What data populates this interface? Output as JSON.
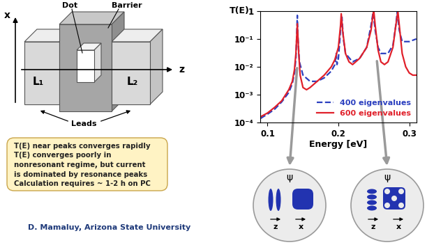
{
  "device": {
    "axis_x": "x",
    "axis_z": "z",
    "dot": "Dot",
    "barrier": "Barrier",
    "lead_left": "L₁",
    "lead_right": "L₂",
    "leads": "Leads"
  },
  "note": {
    "lines": [
      "T(E) near peaks converges rapidly",
      "T(E) converges poorly in",
      "nonresonant regime, but current",
      "is dominated by resonance peaks",
      "Calculation requires ~ 1-2 h on PC"
    ]
  },
  "author": "D. Mamaluy, Arizona State University",
  "wavefunctions": [
    {
      "symbol": "ψ",
      "axes": [
        "z",
        "x"
      ]
    },
    {
      "symbol": "ψ",
      "axes": [
        "z",
        "x"
      ]
    }
  ],
  "chart_data": {
    "type": "line",
    "x_label": "Energy [eV]",
    "y_label": "T(E)",
    "log": "y",
    "legend": "lower right",
    "xlim": [
      0.09,
      0.31
    ],
    "xticks": [
      0.1,
      0.2,
      0.3
    ],
    "ylim": [
      0.0001,
      1
    ],
    "yticks": [
      {
        "value": 0.0001,
        "label": "10⁻⁴"
      },
      {
        "value": 0.001,
        "label": "10⁻³"
      },
      {
        "value": 0.01,
        "label": "10⁻²"
      },
      {
        "value": 0.1,
        "label": "10⁻¹"
      },
      {
        "value": 1,
        "label": "1"
      }
    ],
    "series": [
      {
        "name": "400 eigenvalues",
        "color": "#2b3fbf",
        "line_style": "dashed",
        "x": [
          0.09,
          0.1,
          0.11,
          0.12,
          0.13,
          0.135,
          0.138,
          0.14,
          0.141,
          0.142,
          0.143,
          0.145,
          0.15,
          0.16,
          0.17,
          0.18,
          0.19,
          0.195,
          0.197,
          0.198,
          0.2,
          0.203,
          0.205,
          0.207,
          0.21,
          0.22,
          0.23,
          0.24,
          0.246,
          0.249,
          0.252,
          0.256,
          0.26,
          0.27,
          0.277,
          0.281,
          0.283,
          0.286,
          0.29,
          0.3,
          0.31
        ],
        "values": [
          0.00014,
          0.0002,
          0.0003,
          0.00055,
          0.0012,
          0.0025,
          0.006,
          0.02,
          0.1,
          0.7,
          0.1,
          0.015,
          0.005,
          0.003,
          0.003,
          0.004,
          0.007,
          0.012,
          0.03,
          0.012,
          0.02,
          0.2,
          0.6,
          0.1,
          0.03,
          0.015,
          0.02,
          0.05,
          0.3,
          0.9,
          0.2,
          0.05,
          0.03,
          0.03,
          0.06,
          0.3,
          0.9,
          0.2,
          0.08,
          0.08,
          0.1
        ]
      },
      {
        "name": "600 eigenvalues",
        "color": "#e0202a",
        "line_style": "solid",
        "x": [
          0.09,
          0.1,
          0.11,
          0.12,
          0.13,
          0.135,
          0.138,
          0.14,
          0.142,
          0.144,
          0.146,
          0.15,
          0.155,
          0.16,
          0.17,
          0.18,
          0.19,
          0.195,
          0.2,
          0.203,
          0.204,
          0.206,
          0.21,
          0.215,
          0.22,
          0.23,
          0.24,
          0.246,
          0.249,
          0.25,
          0.252,
          0.256,
          0.26,
          0.265,
          0.27,
          0.277,
          0.281,
          0.284,
          0.286,
          0.29,
          0.295,
          0.3,
          0.305,
          0.31
        ],
        "values": [
          0.00016,
          0.00022,
          0.00035,
          0.0006,
          0.0015,
          0.003,
          0.008,
          0.03,
          0.35,
          0.03,
          0.005,
          0.0018,
          0.0015,
          0.0018,
          0.003,
          0.005,
          0.01,
          0.018,
          0.05,
          0.3,
          0.8,
          0.2,
          0.03,
          0.015,
          0.012,
          0.02,
          0.05,
          0.2,
          0.8,
          1.0,
          0.3,
          0.04,
          0.015,
          0.012,
          0.015,
          0.05,
          0.3,
          0.95,
          0.3,
          0.03,
          0.01,
          0.006,
          0.005,
          0.005
        ]
      }
    ]
  }
}
